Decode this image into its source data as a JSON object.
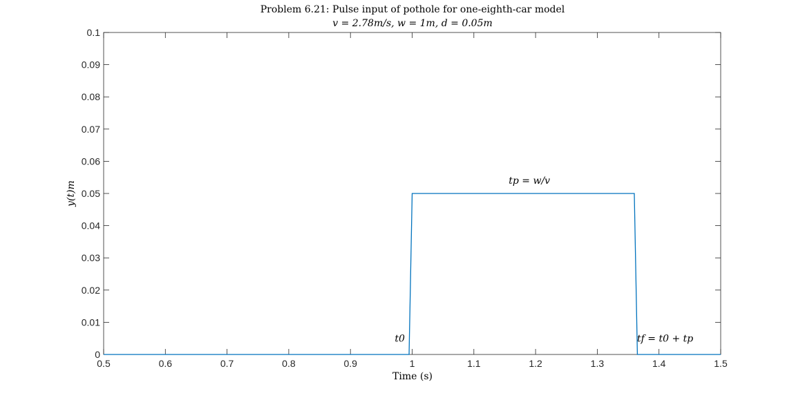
{
  "chart_data": {
    "type": "line",
    "title": "Problem 6.21: Pulse input of pothole for one-eighth-car model",
    "subtitle": "v = 2.78m/s, w = 1m, d = 0.05m",
    "xlabel": "Time (s)",
    "ylabel": "y(t)m",
    "xlim": [
      0.5,
      1.5
    ],
    "ylim": [
      0,
      0.1
    ],
    "xticks": [
      0.5,
      0.6,
      0.7,
      0.8,
      0.9,
      1.0,
      1.1,
      1.2,
      1.3,
      1.4,
      1.5
    ],
    "xtick_labels": [
      "0.5",
      "0.6",
      "0.7",
      "0.8",
      "0.9",
      "1",
      "1.1",
      "1.2",
      "1.3",
      "1.4",
      "1.5"
    ],
    "yticks": [
      0,
      0.01,
      0.02,
      0.03,
      0.04,
      0.05,
      0.06,
      0.07,
      0.08,
      0.09,
      0.1
    ],
    "ytick_labels": [
      "0",
      "0.01",
      "0.02",
      "0.03",
      "0.04",
      "0.05",
      "0.06",
      "0.07",
      "0.08",
      "0.09",
      "0.1"
    ],
    "grid": false,
    "series": [
      {
        "color": "#0072bd",
        "x": [
          0.5,
          0.995,
          1.0,
          1.36,
          1.365,
          1.5
        ],
        "y": [
          0,
          0,
          0.05,
          0.05,
          0,
          0
        ]
      }
    ],
    "annotations": [
      {
        "text": "t0",
        "x": 0.98,
        "y": 0.004
      },
      {
        "text": "tp = w/v",
        "x": 1.19,
        "y": 0.053
      },
      {
        "text": "tf = t0 + tp",
        "x": 1.41,
        "y": 0.004
      }
    ]
  }
}
